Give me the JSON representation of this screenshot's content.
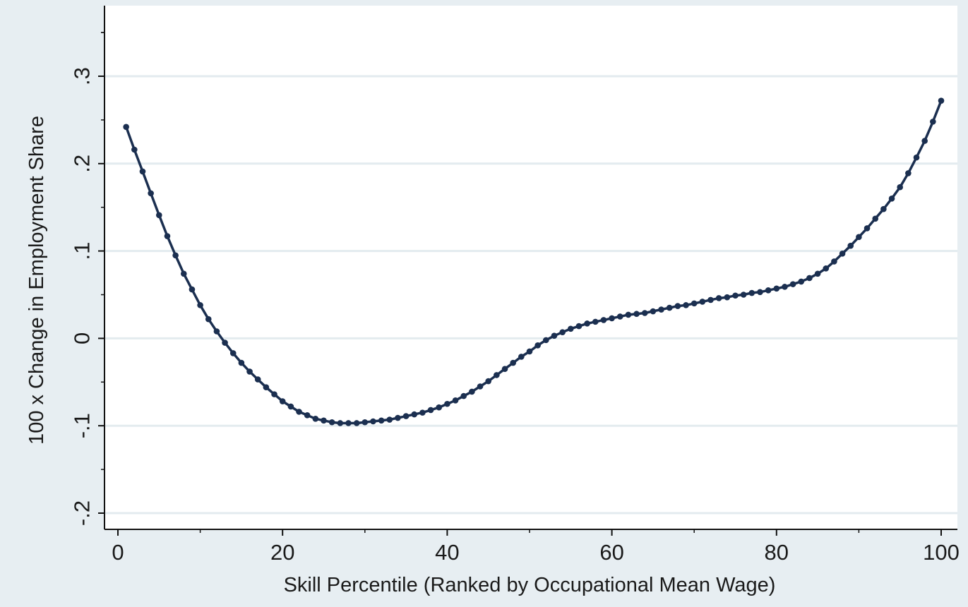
{
  "chart_data": {
    "type": "line",
    "xlabel": "Skill Percentile (Ranked by Occupational Mean Wage)",
    "ylabel": "100 x Change in Employment Share",
    "xlim": [
      0,
      100
    ],
    "ylim": [
      -0.2,
      0.3
    ],
    "x_ticks": [
      0,
      20,
      40,
      60,
      80,
      100
    ],
    "y_ticks": [
      -0.2,
      -0.1,
      0,
      0.1,
      0.2,
      0.3
    ],
    "x_tick_labels": [
      "0",
      "20",
      "40",
      "60",
      "80",
      "100"
    ],
    "y_tick_labels": [
      "-.2",
      "-.1",
      "0",
      ".1",
      ".2",
      ".3"
    ],
    "grid": true,
    "legend": "none",
    "colors": {
      "series": "#1b2f50",
      "background": "#e7eef2",
      "plot_area": "#ffffff",
      "gridline": "#e3ebef"
    },
    "series": [
      {
        "x": [
          1,
          2,
          3,
          4,
          5,
          6,
          7,
          8,
          9,
          10,
          11,
          12,
          13,
          14,
          15,
          16,
          17,
          18,
          19,
          20,
          21,
          22,
          23,
          24,
          25,
          26,
          27,
          28,
          29,
          30,
          31,
          32,
          33,
          34,
          35,
          36,
          37,
          38,
          39,
          40,
          41,
          42,
          43,
          44,
          45,
          46,
          47,
          48,
          49,
          50,
          51,
          52,
          53,
          54,
          55,
          56,
          57,
          58,
          59,
          60,
          61,
          62,
          63,
          64,
          65,
          66,
          67,
          68,
          69,
          70,
          71,
          72,
          73,
          74,
          75,
          76,
          77,
          78,
          79,
          80,
          81,
          82,
          83,
          84,
          85,
          86,
          87,
          88,
          89,
          90,
          91,
          92,
          93,
          94,
          95,
          96,
          97,
          98,
          99,
          100
        ],
        "y": [
          0.242,
          0.216,
          0.191,
          0.166,
          0.141,
          0.117,
          0.095,
          0.074,
          0.056,
          0.038,
          0.022,
          0.008,
          -0.005,
          -0.017,
          -0.028,
          -0.038,
          -0.047,
          -0.056,
          -0.064,
          -0.072,
          -0.078,
          -0.084,
          -0.088,
          -0.092,
          -0.094,
          -0.096,
          -0.097,
          -0.097,
          -0.097,
          -0.096,
          -0.095,
          -0.094,
          -0.093,
          -0.091,
          -0.089,
          -0.087,
          -0.085,
          -0.082,
          -0.079,
          -0.075,
          -0.071,
          -0.066,
          -0.061,
          -0.055,
          -0.049,
          -0.042,
          -0.035,
          -0.028,
          -0.021,
          -0.015,
          -0.008,
          -0.002,
          0.003,
          0.007,
          0.011,
          0.014,
          0.017,
          0.019,
          0.021,
          0.023,
          0.025,
          0.027,
          0.028,
          0.029,
          0.031,
          0.033,
          0.035,
          0.037,
          0.038,
          0.04,
          0.042,
          0.044,
          0.046,
          0.047,
          0.049,
          0.05,
          0.052,
          0.053,
          0.055,
          0.057,
          0.059,
          0.062,
          0.065,
          0.069,
          0.074,
          0.08,
          0.088,
          0.097,
          0.106,
          0.116,
          0.126,
          0.137,
          0.148,
          0.16,
          0.173,
          0.189,
          0.207,
          0.226,
          0.248,
          0.272
        ]
      }
    ]
  }
}
